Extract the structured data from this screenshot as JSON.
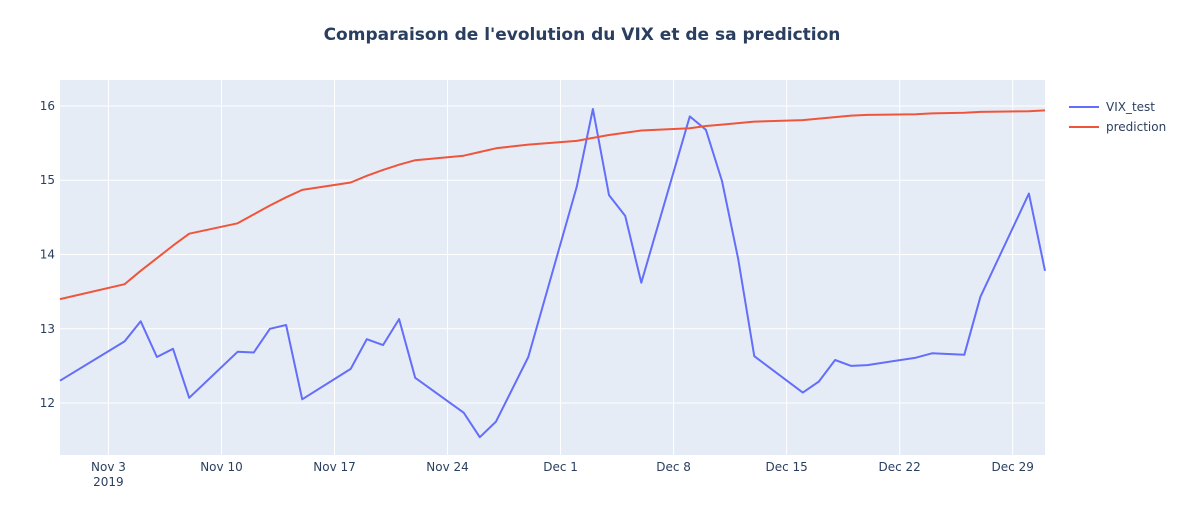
{
  "chart_data": {
    "type": "line",
    "title": "Comparaison de l'evolution du VIX et de sa prediction",
    "xlabel": "",
    "ylabel": "",
    "x_range": [
      "2019-10-31",
      "2019-12-31"
    ],
    "ylim": [
      11.3,
      16.35
    ],
    "grid": true,
    "legend_position": "top-right",
    "x_ticks": [
      {
        "date": "2019-11-03",
        "label": "Nov 3",
        "sublabel": "2019"
      },
      {
        "date": "2019-11-10",
        "label": "Nov 10",
        "sublabel": ""
      },
      {
        "date": "2019-11-17",
        "label": "Nov 17",
        "sublabel": ""
      },
      {
        "date": "2019-11-24",
        "label": "Nov 24",
        "sublabel": ""
      },
      {
        "date": "2019-12-01",
        "label": "Dec 1",
        "sublabel": ""
      },
      {
        "date": "2019-12-08",
        "label": "Dec 8",
        "sublabel": ""
      },
      {
        "date": "2019-12-15",
        "label": "Dec 15",
        "sublabel": ""
      },
      {
        "date": "2019-12-22",
        "label": "Dec 22",
        "sublabel": ""
      },
      {
        "date": "2019-12-29",
        "label": "Dec 29",
        "sublabel": ""
      }
    ],
    "y_ticks": [
      12,
      13,
      14,
      15,
      16
    ],
    "series": [
      {
        "name": "VIX_test",
        "color": "#636efa",
        "points": [
          [
            "2019-10-31",
            12.3
          ],
          [
            "2019-11-04",
            12.83
          ],
          [
            "2019-11-05",
            13.1
          ],
          [
            "2019-11-06",
            12.62
          ],
          [
            "2019-11-07",
            12.73
          ],
          [
            "2019-11-08",
            12.07
          ],
          [
            "2019-11-11",
            12.69
          ],
          [
            "2019-11-12",
            12.68
          ],
          [
            "2019-11-13",
            13.0
          ],
          [
            "2019-11-14",
            13.05
          ],
          [
            "2019-11-15",
            12.05
          ],
          [
            "2019-11-18",
            12.46
          ],
          [
            "2019-11-19",
            12.86
          ],
          [
            "2019-11-20",
            12.78
          ],
          [
            "2019-11-21",
            13.13
          ],
          [
            "2019-11-22",
            12.34
          ],
          [
            "2019-11-25",
            11.87
          ],
          [
            "2019-11-26",
            11.54
          ],
          [
            "2019-11-27",
            11.75
          ],
          [
            "2019-11-29",
            12.62
          ],
          [
            "2019-12-02",
            14.91
          ],
          [
            "2019-12-03",
            15.96
          ],
          [
            "2019-12-04",
            14.8
          ],
          [
            "2019-12-05",
            14.52
          ],
          [
            "2019-12-06",
            13.62
          ],
          [
            "2019-12-09",
            15.86
          ],
          [
            "2019-12-10",
            15.68
          ],
          [
            "2019-12-11",
            14.99
          ],
          [
            "2019-12-12",
            13.94
          ],
          [
            "2019-12-13",
            12.63
          ],
          [
            "2019-12-16",
            12.14
          ],
          [
            "2019-12-17",
            12.29
          ],
          [
            "2019-12-18",
            12.58
          ],
          [
            "2019-12-19",
            12.5
          ],
          [
            "2019-12-20",
            12.51
          ],
          [
            "2019-12-23",
            12.61
          ],
          [
            "2019-12-24",
            12.67
          ],
          [
            "2019-12-26",
            12.65
          ],
          [
            "2019-12-27",
            13.43
          ],
          [
            "2019-12-30",
            14.82
          ],
          [
            "2019-12-31",
            13.78
          ]
        ]
      },
      {
        "name": "prediction",
        "color": "#ef553b",
        "points": [
          [
            "2019-10-31",
            13.4
          ],
          [
            "2019-11-04",
            13.6
          ],
          [
            "2019-11-05",
            13.78
          ],
          [
            "2019-11-06",
            13.95
          ],
          [
            "2019-11-07",
            14.12
          ],
          [
            "2019-11-08",
            14.28
          ],
          [
            "2019-11-11",
            14.42
          ],
          [
            "2019-11-12",
            14.54
          ],
          [
            "2019-11-13",
            14.66
          ],
          [
            "2019-11-14",
            14.77
          ],
          [
            "2019-11-15",
            14.87
          ],
          [
            "2019-11-18",
            14.97
          ],
          [
            "2019-11-19",
            15.06
          ],
          [
            "2019-11-20",
            15.14
          ],
          [
            "2019-11-21",
            15.21
          ],
          [
            "2019-11-22",
            15.27
          ],
          [
            "2019-11-25",
            15.33
          ],
          [
            "2019-11-26",
            15.38
          ],
          [
            "2019-11-27",
            15.43
          ],
          [
            "2019-11-29",
            15.48
          ],
          [
            "2019-12-02",
            15.53
          ],
          [
            "2019-12-03",
            15.57
          ],
          [
            "2019-12-04",
            15.61
          ],
          [
            "2019-12-05",
            15.64
          ],
          [
            "2019-12-06",
            15.67
          ],
          [
            "2019-12-09",
            15.7
          ],
          [
            "2019-12-10",
            15.73
          ],
          [
            "2019-12-11",
            15.75
          ],
          [
            "2019-12-12",
            15.77
          ],
          [
            "2019-12-13",
            15.79
          ],
          [
            "2019-12-16",
            15.81
          ],
          [
            "2019-12-17",
            15.83
          ],
          [
            "2019-12-18",
            15.85
          ],
          [
            "2019-12-19",
            15.87
          ],
          [
            "2019-12-20",
            15.88
          ],
          [
            "2019-12-23",
            15.89
          ],
          [
            "2019-12-24",
            15.9
          ],
          [
            "2019-12-26",
            15.91
          ],
          [
            "2019-12-27",
            15.92
          ],
          [
            "2019-12-30",
            15.93
          ],
          [
            "2019-12-31",
            15.94
          ]
        ]
      }
    ]
  }
}
